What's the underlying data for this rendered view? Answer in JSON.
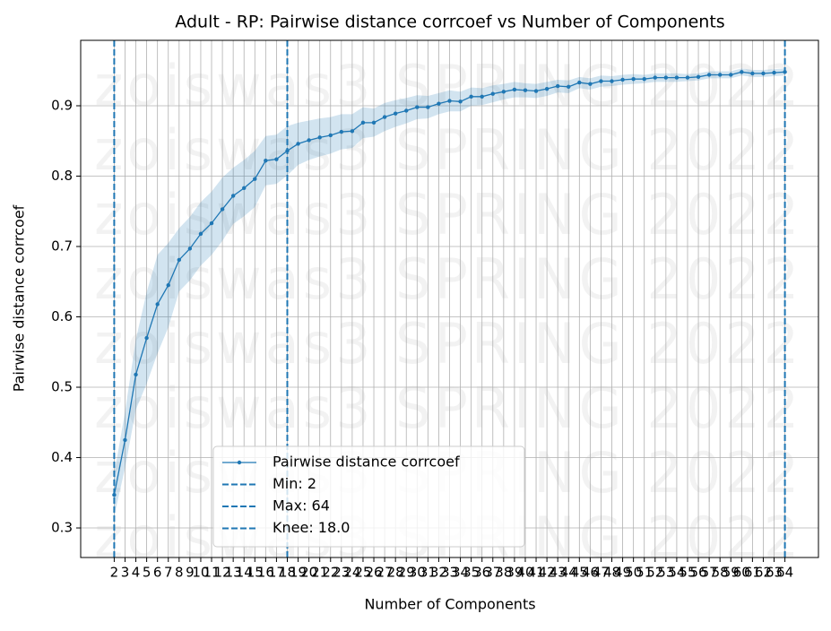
{
  "chart_data": {
    "type": "line",
    "title": "Adult - RP: Pairwise distance corrcoef vs Number of Components",
    "xlabel": "Number of Components",
    "ylabel": "Pairwise distance corrcoef",
    "watermark": "zoiswas3 SPRING 2022",
    "x": [
      2,
      3,
      4,
      5,
      6,
      7,
      8,
      9,
      10,
      11,
      12,
      13,
      14,
      15,
      16,
      17,
      18,
      19,
      20,
      21,
      22,
      23,
      24,
      25,
      26,
      27,
      28,
      29,
      30,
      31,
      32,
      33,
      34,
      35,
      36,
      37,
      38,
      39,
      40,
      41,
      42,
      43,
      44,
      45,
      46,
      47,
      48,
      49,
      50,
      51,
      52,
      53,
      54,
      55,
      56,
      57,
      58,
      59,
      60,
      61,
      62,
      63,
      64
    ],
    "series": [
      {
        "name": "Pairwise distance corrcoef",
        "color": "#1f77b4",
        "values": [
          0.347,
          0.425,
          0.518,
          0.57,
          0.618,
          0.645,
          0.681,
          0.697,
          0.718,
          0.733,
          0.753,
          0.772,
          0.783,
          0.796,
          0.822,
          0.824,
          0.836,
          0.846,
          0.851,
          0.855,
          0.858,
          0.863,
          0.864,
          0.876,
          0.876,
          0.884,
          0.889,
          0.893,
          0.898,
          0.898,
          0.903,
          0.907,
          0.906,
          0.913,
          0.913,
          0.917,
          0.92,
          0.923,
          0.922,
          0.921,
          0.924,
          0.928,
          0.927,
          0.933,
          0.931,
          0.935,
          0.935,
          0.937,
          0.938,
          0.938,
          0.94,
          0.94,
          0.94,
          0.94,
          0.941,
          0.944,
          0.944,
          0.944,
          0.948,
          0.946,
          0.946,
          0.947,
          0.948
        ],
        "std": [
          0.03,
          0.04,
          0.05,
          0.065,
          0.07,
          0.06,
          0.045,
          0.045,
          0.045,
          0.045,
          0.045,
          0.04,
          0.04,
          0.04,
          0.035,
          0.035,
          0.035,
          0.03,
          0.028,
          0.027,
          0.026,
          0.025,
          0.024,
          0.022,
          0.02,
          0.02,
          0.019,
          0.018,
          0.017,
          0.016,
          0.015,
          0.015,
          0.014,
          0.013,
          0.012,
          0.012,
          0.011,
          0.011,
          0.01,
          0.01,
          0.01,
          0.009,
          0.009,
          0.008,
          0.008,
          0.008,
          0.007,
          0.007,
          0.007,
          0.006,
          0.006,
          0.006,
          0.006,
          0.005,
          0.005,
          0.005,
          0.005,
          0.005,
          0.005,
          0.005,
          0.005,
          0.005,
          0.005
        ]
      }
    ],
    "vlines": [
      {
        "name": "Min: 2",
        "value": 2,
        "color": "#1f77b4"
      },
      {
        "name": "Max: 64",
        "value": 64,
        "color": "#1f77b4"
      },
      {
        "name": "Knee: 18.0",
        "value": 18.0,
        "color": "#1f77b4"
      }
    ],
    "xlim": [
      -1.1,
      67.1
    ],
    "ylim": [
      0.258,
      0.993
    ],
    "xticks": [
      2,
      3,
      4,
      5,
      6,
      7,
      8,
      9,
      10,
      11,
      12,
      13,
      14,
      15,
      16,
      17,
      18,
      19,
      20,
      21,
      22,
      23,
      24,
      25,
      26,
      27,
      28,
      29,
      30,
      31,
      32,
      33,
      34,
      35,
      36,
      37,
      38,
      39,
      40,
      41,
      42,
      43,
      44,
      45,
      46,
      47,
      48,
      49,
      50,
      51,
      52,
      53,
      54,
      55,
      56,
      57,
      58,
      59,
      60,
      61,
      62,
      63,
      64
    ],
    "yticks": [
      0.3,
      0.4,
      0.5,
      0.6,
      0.7,
      0.8,
      0.9
    ],
    "grid": true,
    "legend": "lower center"
  }
}
